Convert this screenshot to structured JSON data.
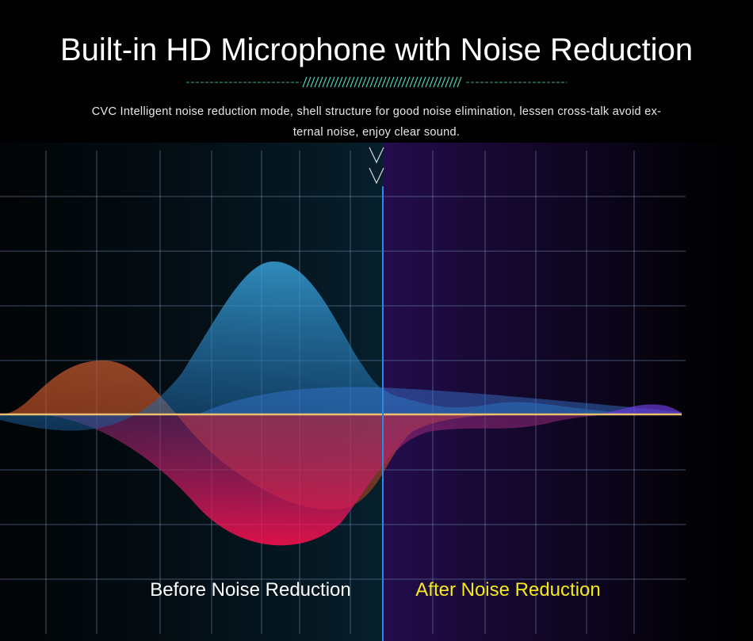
{
  "header": {
    "title": "Built-in HD Microphone with Noise Reduction",
    "description": [
      "CVC Intelligent noise reduction mode, shell structure for good noise elimination, lessen cross-talk avoid ex-",
      "ternal noise, enjoy clear sound."
    ]
  },
  "labels": {
    "before": "Before Noise Reduction",
    "after": "After Noise Reduction"
  }
}
